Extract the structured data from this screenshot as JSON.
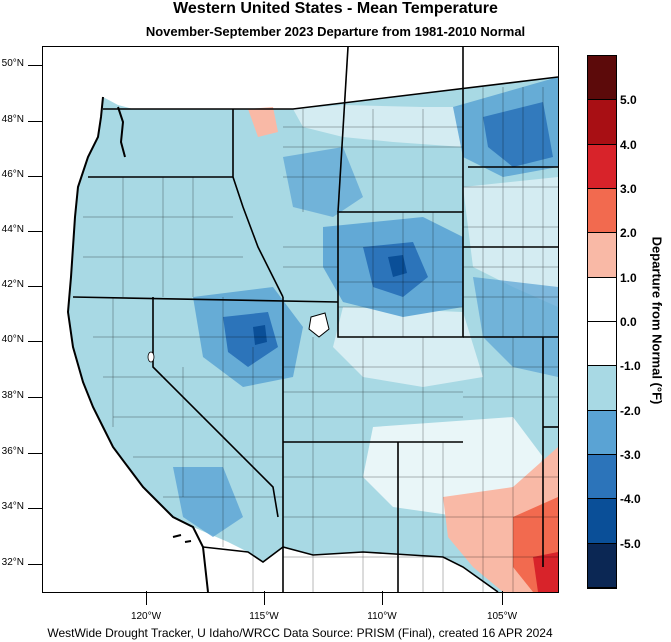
{
  "title": "Western United States - Mean Temperature",
  "subtitle": "November-September 2023  Departure from 1981-2010 Normal",
  "footer": "WestWide Drought Tracker, U Idaho/WRCC Data Source: PRISM (Final), created 16 APR 2024",
  "legend": {
    "title": "Departure from Normal (°F)",
    "bins": [
      {
        "label": "5.0",
        "color": "#5c0a0a"
      },
      {
        "label": "4.0",
        "color": "#a80f14"
      },
      {
        "label": "3.0",
        "color": "#d8232a"
      },
      {
        "label": "2.0",
        "color": "#f26a4f"
      },
      {
        "label": "1.0",
        "color": "#f9b9a6"
      },
      {
        "label": "0.0",
        "color": "#ffffff"
      },
      {
        "label": "-1.0",
        "color": "#ffffff"
      },
      {
        "label": "-2.0",
        "color": "#a8d9e4"
      },
      {
        "label": "-3.0",
        "color": "#5aa3d4"
      },
      {
        "label": "-4.0",
        "color": "#2c74ba"
      },
      {
        "label": "-5.0",
        "color": "#0a4f98"
      },
      {
        "label": "",
        "color": "#0b2754"
      }
    ]
  },
  "axes": {
    "latitudes": [
      "50°N",
      "48°N",
      "46°N",
      "44°N",
      "42°N",
      "40°N",
      "38°N",
      "36°N",
      "34°N",
      "32°N"
    ],
    "longitudes": [
      "120°W",
      "115°W",
      "110°W",
      "105°W"
    ]
  }
}
